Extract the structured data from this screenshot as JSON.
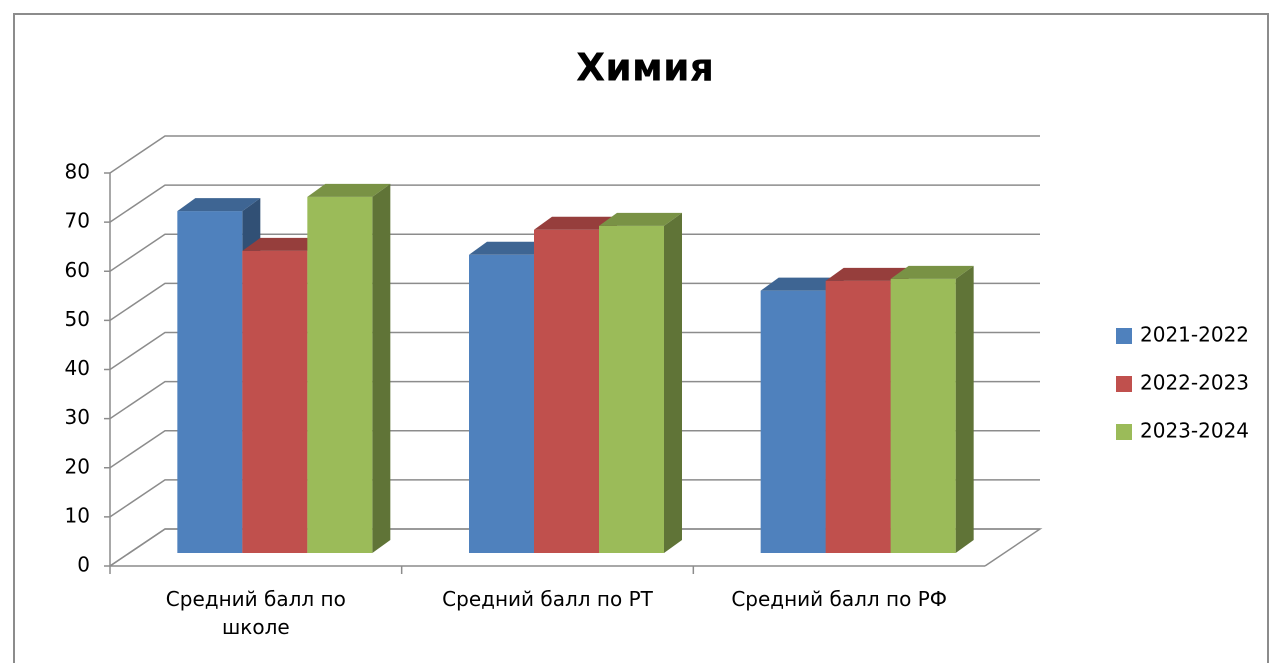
{
  "chart_data": {
    "type": "bar3d",
    "title": "Химия",
    "categories": [
      "Средний балл по\nшколе",
      "Средний балл по РТ",
      "Средний балл по РФ"
    ],
    "series": [
      {
        "name": "2021-2022",
        "color": "#4f81bd",
        "values": [
          69.6,
          60.7,
          53.4
        ]
      },
      {
        "name": "2022-2023",
        "color": "#c0504d",
        "values": [
          61.5,
          65.8,
          55.4
        ]
      },
      {
        "name": "2023-2024",
        "color": "#9bbb59",
        "values": [
          72.5,
          66.6,
          55.8
        ]
      }
    ],
    "ylim": [
      0,
      80
    ],
    "yticks": [
      0,
      10,
      20,
      30,
      40,
      50,
      60,
      70,
      80
    ],
    "grid": true,
    "legend": "right"
  }
}
